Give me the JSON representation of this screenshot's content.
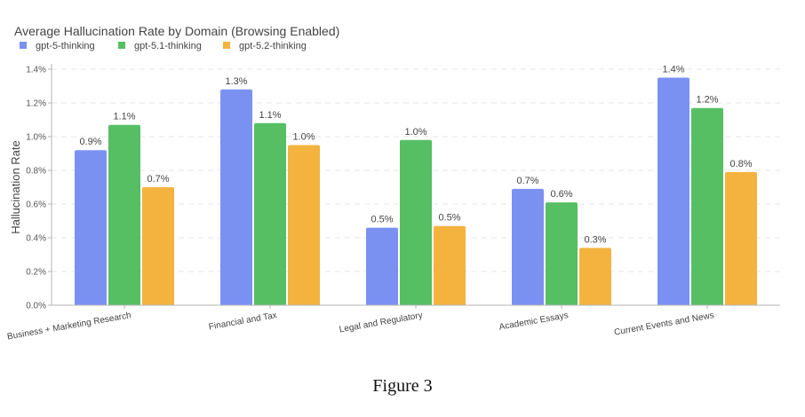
{
  "chart_data": {
    "type": "bar",
    "title": "Average Hallucination Rate by Domain (Browsing Enabled)",
    "xlabel": "",
    "ylabel": "Hallucination Rate",
    "categories": [
      "Business + Marketing Research",
      "Financial and Tax",
      "Legal and Regulatory",
      "Academic Essays",
      "Current Events and News"
    ],
    "series": [
      {
        "name": "gpt-5-thinking",
        "color": "#7b91f2",
        "values": [
          0.92,
          1.28,
          0.46,
          0.69,
          1.35
        ],
        "labels": [
          "0.9%",
          "1.3%",
          "0.5%",
          "0.7%",
          "1.4%"
        ]
      },
      {
        "name": "gpt-5.1-thinking",
        "color": "#56bf64",
        "values": [
          1.07,
          1.08,
          0.98,
          0.61,
          1.17
        ],
        "labels": [
          "1.1%",
          "1.1%",
          "1.0%",
          "0.6%",
          "1.2%"
        ]
      },
      {
        "name": "gpt-5.2-thinking",
        "color": "#f4b33f",
        "values": [
          0.7,
          0.95,
          0.47,
          0.34,
          0.79
        ],
        "labels": [
          "0.7%",
          "1.0%",
          "0.5%",
          "0.3%",
          "0.8%"
        ]
      }
    ],
    "yticks": [
      "0.0%",
      "0.2%",
      "0.4%",
      "0.6%",
      "0.8%",
      "1.0%",
      "1.2%",
      "1.4%"
    ],
    "ylim": [
      0,
      1.4
    ],
    "grid": true,
    "legend_position": "top-left"
  },
  "caption": "Figure 3"
}
